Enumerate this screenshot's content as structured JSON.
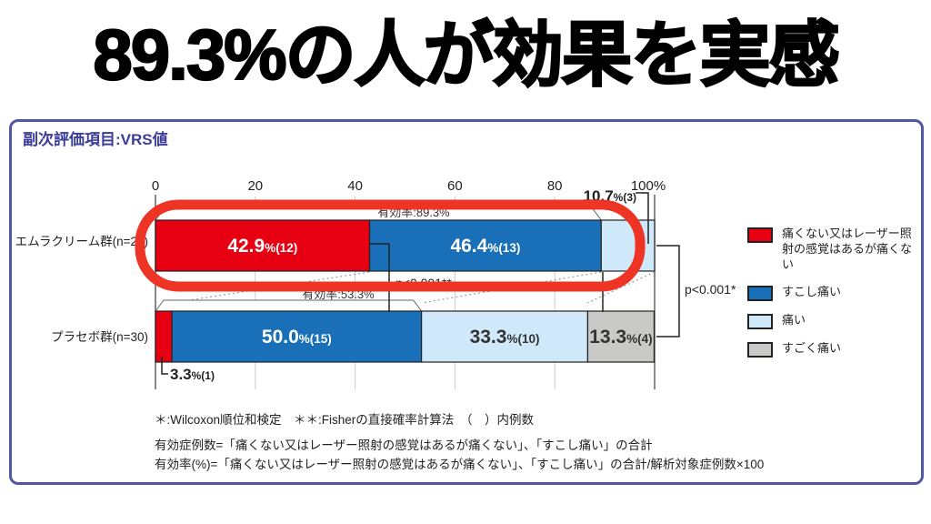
{
  "title": "89.3%の人が効果を実感",
  "panel": {
    "header": "副次評価項目:VRS値"
  },
  "colors": {
    "highlight_ring": "#ee3424",
    "panel_border": "#5156a5",
    "header_text": "#3c3d99"
  },
  "chart_data": {
    "type": "bar",
    "orientation": "horizontal-stacked",
    "title": "副次評価項目:VRS値",
    "unit": "%",
    "axis_values": [
      0,
      20,
      40,
      60,
      80,
      100
    ],
    "axis_ticks": [
      "0",
      "20",
      "40",
      "60",
      "80",
      "100%"
    ],
    "xlim": [
      0,
      100
    ],
    "grid": "vertical-light",
    "categories": [
      "エムラクリーム群(n=28)",
      "プラセボ群(n=30)"
    ],
    "series": [
      {
        "name": "痛くない又はレーザー照射の感覚はあるが痛くない",
        "key": "red",
        "values": [
          42.9,
          3.3
        ],
        "counts": [
          12,
          1
        ]
      },
      {
        "name": "すこし痛い",
        "key": "blue",
        "values": [
          46.4,
          50.0
        ],
        "counts": [
          13,
          15
        ]
      },
      {
        "name": "痛い",
        "key": "lightblue",
        "values": [
          10.7,
          33.3
        ],
        "counts": [
          3,
          10
        ]
      },
      {
        "name": "すごく痛い",
        "key": "gray",
        "values": [
          0,
          13.3
        ],
        "counts": [
          0,
          4
        ]
      }
    ],
    "colors": {
      "red": "#e60012",
      "blue": "#1a70b8",
      "lightblue": "#cfe9fa",
      "gray": "#c9c9c7"
    },
    "efficacy": [
      {
        "label": "有効率:89.3%",
        "value": 89.3
      },
      {
        "label": "有効率:53.3%",
        "value": 53.3
      }
    ],
    "p_values": {
      "between_groups": "p<0.001**",
      "right_bracket": "p<0.001*"
    },
    "callouts": {
      "bar1_lightblue": "10.7%(3)",
      "bar2_red": "3.3%(1)"
    },
    "legend_position": "right"
  },
  "legend": [
    {
      "label": "痛くない又はレーザー照射の感覚はあるが痛くない",
      "color_key": "red"
    },
    {
      "label": "すこし痛い",
      "color_key": "blue"
    },
    {
      "label": "痛い",
      "color_key": "lightblue"
    },
    {
      "label": "すごく痛い",
      "color_key": "gray"
    }
  ],
  "footnotes": [
    "＊:Wilcoxon順位和検定　＊＊:Fisherの直接確率計算法　（　）内例数",
    "有効症例数=「痛くない又はレーザー照射の感覚はあるが痛くない」、「すこし痛い」の合計",
    "有効率(%)=「痛くない又はレーザー照射の感覚はあるが痛くない」、「すこし痛い」の合計/解析対象症例数×100"
  ]
}
